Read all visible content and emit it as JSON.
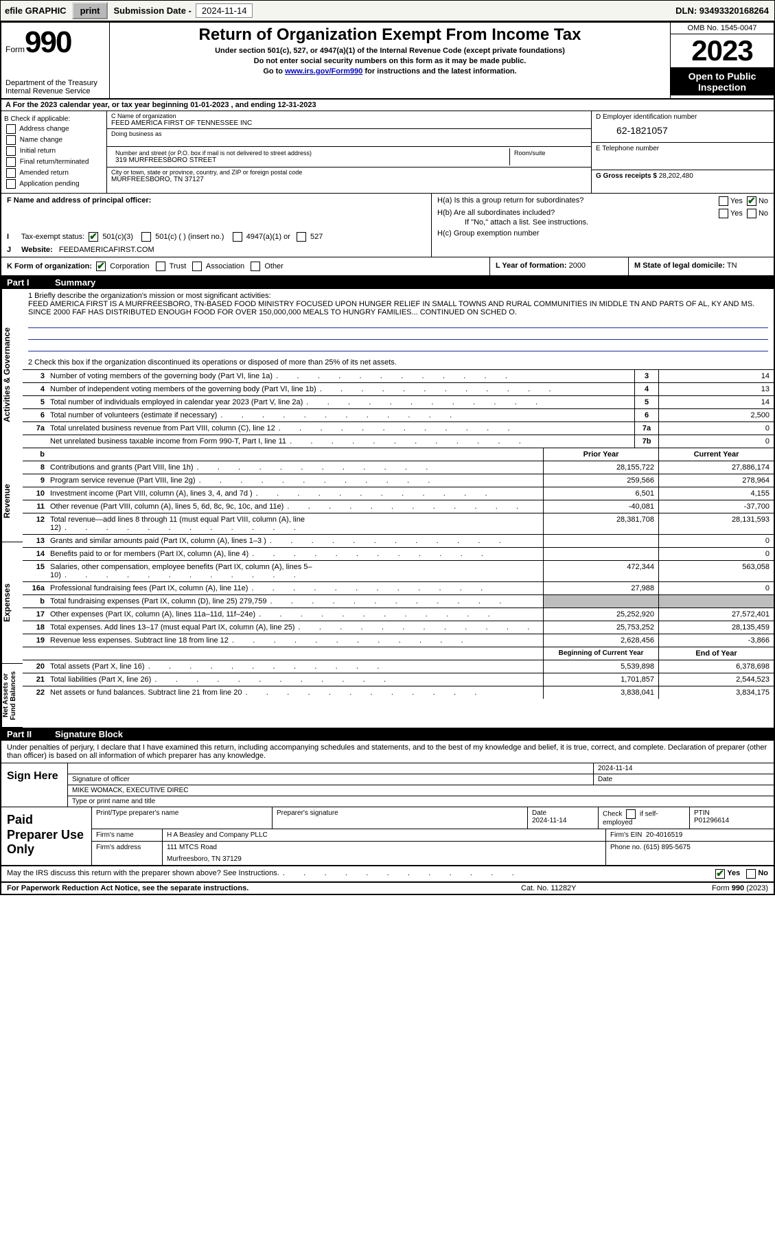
{
  "topbar": {
    "efile": "efile GRAPHIC",
    "print": "print",
    "sub_label": "Submission Date - ",
    "sub_date": "2024-11-14",
    "dln": "DLN: 93493320168264"
  },
  "header": {
    "form_word": "Form",
    "form_num": "990",
    "dept": "Department of the Treasury Internal Revenue Service",
    "title": "Return of Organization Exempt From Income Tax",
    "sub1": "Under section 501(c), 527, or 4947(a)(1) of the Internal Revenue Code (except private foundations)",
    "sub2": "Do not enter social security numbers on this form as it may be made public.",
    "sub3a": "Go to ",
    "sub3link": "www.irs.gov/Form990",
    "sub3b": " for instructions and the latest information.",
    "omb": "OMB No. 1545-0047",
    "year": "2023",
    "open": "Open to Public Inspection"
  },
  "rowA": {
    "text": "A For the 2023 calendar year, or tax year beginning 01-01-2023   , and ending 12-31-2023"
  },
  "b": {
    "title": "B Check if applicable:",
    "i1": "Address change",
    "i2": "Name change",
    "i3": "Initial return",
    "i4": "Final return/terminated",
    "i5": "Amended return",
    "i6": "Application pending"
  },
  "c": {
    "label_name": "C Name of organization",
    "name": "FEED AMERICA FIRST OF TENNESSEE INC",
    "dba_label": "Doing business as",
    "addr_label": "Number and street (or P.O. box if mail is not delivered to street address)",
    "room_label": "Room/suite",
    "addr": "319 MURFREESBORO STREET",
    "city_label": "City or town, state or province, country, and ZIP or foreign postal code",
    "city": "MURFREESBORO, TN  37127"
  },
  "d": {
    "label": "D Employer identification number",
    "ein": "62-1821057"
  },
  "e": {
    "label": "E Telephone number"
  },
  "g": {
    "label": "G Gross receipts $",
    "val": "28,202,480"
  },
  "f": {
    "label": "F  Name and address of principal officer:"
  },
  "h": {
    "ha": "H(a)  Is this a group return for subordinates?",
    "hb": "H(b)  Are all subordinates included?",
    "hnote": "If \"No,\" attach a list. See instructions.",
    "hc": "H(c)  Group exemption number",
    "yes": "Yes",
    "no": "No"
  },
  "i": {
    "label": "Tax-exempt status:",
    "o1": "501(c)(3)",
    "o2": "501(c) (  ) (insert no.)",
    "o3": "4947(a)(1) or",
    "o4": "527"
  },
  "j": {
    "label": "Website:",
    "val": "FEEDAMERICAFIRST.COM"
  },
  "k": {
    "label": "K Form of organization:",
    "o1": "Corporation",
    "o2": "Trust",
    "o3": "Association",
    "o4": "Other"
  },
  "l": {
    "label": "L Year of formation:",
    "val": "2000"
  },
  "m": {
    "label": "M State of legal domicile:",
    "val": "TN"
  },
  "part1": {
    "num": "Part I",
    "title": "Summary"
  },
  "vtabs": {
    "ag": "Activities & Governance",
    "rev": "Revenue",
    "exp": "Expenses",
    "nab": "Net Assets or Fund Balances"
  },
  "q1": {
    "label": "1   Briefly describe the organization's mission or most significant activities:",
    "text": "FEED AMERICA FIRST IS A MURFREESBORO, TN-BASED FOOD MINISTRY FOCUSED UPON HUNGER RELIEF IN SMALL TOWNS AND RURAL COMMUNITIES IN MIDDLE TN AND PARTS OF AL, KY AND MS. SINCE 2000 FAF HAS DISTRIBUTED ENOUGH FOOD FOR OVER 150,000,000 MEALS TO HUNGRY FAMILIES... CONTINUED ON SCHED O."
  },
  "q2": "2   Check this box      if the organization discontinued its operations or disposed of more than 25% of its net assets.",
  "lines1": [
    {
      "n": "3",
      "d": "Number of voting members of the governing body (Part VI, line 1a)",
      "b": "3",
      "v": "14"
    },
    {
      "n": "4",
      "d": "Number of independent voting members of the governing body (Part VI, line 1b)",
      "b": "4",
      "v": "13"
    },
    {
      "n": "5",
      "d": "Total number of individuals employed in calendar year 2023 (Part V, line 2a)",
      "b": "5",
      "v": "14"
    },
    {
      "n": "6",
      "d": "Total number of volunteers (estimate if necessary)",
      "b": "6",
      "v": "2,500"
    },
    {
      "n": "7a",
      "d": "Total unrelated business revenue from Part VIII, column (C), line 12",
      "b": "7a",
      "v": "0"
    },
    {
      "n": "",
      "d": "Net unrelated business taxable income from Form 990-T, Part I, line 11",
      "b": "7b",
      "v": "0"
    }
  ],
  "head2": {
    "c1": "Prior Year",
    "c2": "Current Year"
  },
  "lines2": [
    {
      "n": "8",
      "d": "Contributions and grants (Part VIII, line 1h)",
      "v1": "28,155,722",
      "v2": "27,886,174"
    },
    {
      "n": "9",
      "d": "Program service revenue (Part VIII, line 2g)",
      "v1": "259,566",
      "v2": "278,964"
    },
    {
      "n": "10",
      "d": "Investment income (Part VIII, column (A), lines 3, 4, and 7d )",
      "v1": "6,501",
      "v2": "4,155"
    },
    {
      "n": "11",
      "d": "Other revenue (Part VIII, column (A), lines 5, 6d, 8c, 9c, 10c, and 11e)",
      "v1": "-40,081",
      "v2": "-37,700"
    },
    {
      "n": "12",
      "d": "Total revenue—add lines 8 through 11 (must equal Part VIII, column (A), line 12)",
      "v1": "28,381,708",
      "v2": "28,131,593"
    }
  ],
  "lines3": [
    {
      "n": "13",
      "d": "Grants and similar amounts paid (Part IX, column (A), lines 1–3 )",
      "v1": "",
      "v2": "0"
    },
    {
      "n": "14",
      "d": "Benefits paid to or for members (Part IX, column (A), line 4)",
      "v1": "",
      "v2": "0"
    },
    {
      "n": "15",
      "d": "Salaries, other compensation, employee benefits (Part IX, column (A), lines 5–10)",
      "v1": "472,344",
      "v2": "563,058"
    },
    {
      "n": "16a",
      "d": "Professional fundraising fees (Part IX, column (A), line 11e)",
      "v1": "27,988",
      "v2": "0"
    },
    {
      "n": "b",
      "d": "Total fundraising expenses (Part IX, column (D), line 25) 279,759",
      "v1": "GREY",
      "v2": "GREY"
    },
    {
      "n": "17",
      "d": "Other expenses (Part IX, column (A), lines 11a–11d, 11f–24e)",
      "v1": "25,252,920",
      "v2": "27,572,401"
    },
    {
      "n": "18",
      "d": "Total expenses. Add lines 13–17 (must equal Part IX, column (A), line 25)",
      "v1": "25,753,252",
      "v2": "28,135,459"
    },
    {
      "n": "19",
      "d": "Revenue less expenses. Subtract line 18 from line 12",
      "v1": "2,628,456",
      "v2": "-3,866"
    }
  ],
  "head3": {
    "c1": "Beginning of Current Year",
    "c2": "End of Year"
  },
  "lines4": [
    {
      "n": "20",
      "d": "Total assets (Part X, line 16)",
      "v1": "5,539,898",
      "v2": "6,378,698"
    },
    {
      "n": "21",
      "d": "Total liabilities (Part X, line 26)",
      "v1": "1,701,857",
      "v2": "2,544,523"
    },
    {
      "n": "22",
      "d": "Net assets or fund balances. Subtract line 21 from line 20",
      "v1": "3,838,041",
      "v2": "3,834,175"
    }
  ],
  "part2": {
    "num": "Part II",
    "title": "Signature Block"
  },
  "perjury": "Under penalties of perjury, I declare that I have examined this return, including accompanying schedules and statements, and to the best of my knowledge and belief, it is true, correct, and complete. Declaration of preparer (other than officer) is based on all information of which preparer has any knowledge.",
  "sign": {
    "title": "Sign Here",
    "sig_label": "Signature of officer",
    "date_label": "Date",
    "date": "2024-11-14",
    "name": "MIKE WOMACK, EXECUTIVE DIREC",
    "name_label": "Type or print name and title"
  },
  "paid": {
    "title": "Paid Preparer Use Only",
    "h1": "Print/Type preparer's name",
    "h2": "Preparer's signature",
    "h3": "Date",
    "date": "2024-11-14",
    "h4": "Check       if self-employed",
    "h5": "PTIN",
    "ptin": "P01296614",
    "firm_label": "Firm's name",
    "firm": "H A Beasley and Company PLLC",
    "ein_label": "Firm's EIN",
    "ein": "20-4016519",
    "addr_label": "Firm's address",
    "addr1": "111 MTCS Road",
    "addr2": "Murfreesboro, TN  37129",
    "phone_label": "Phone no.",
    "phone": "(615) 895-5675"
  },
  "discuss": {
    "q": "May the IRS discuss this return with the preparer shown above? See Instructions.",
    "yes": "Yes",
    "no": "No"
  },
  "footer": {
    "f1": "For Paperwork Reduction Act Notice, see the separate instructions.",
    "f2": "Cat. No. 11282Y",
    "f3": "Form 990 (2023)"
  }
}
